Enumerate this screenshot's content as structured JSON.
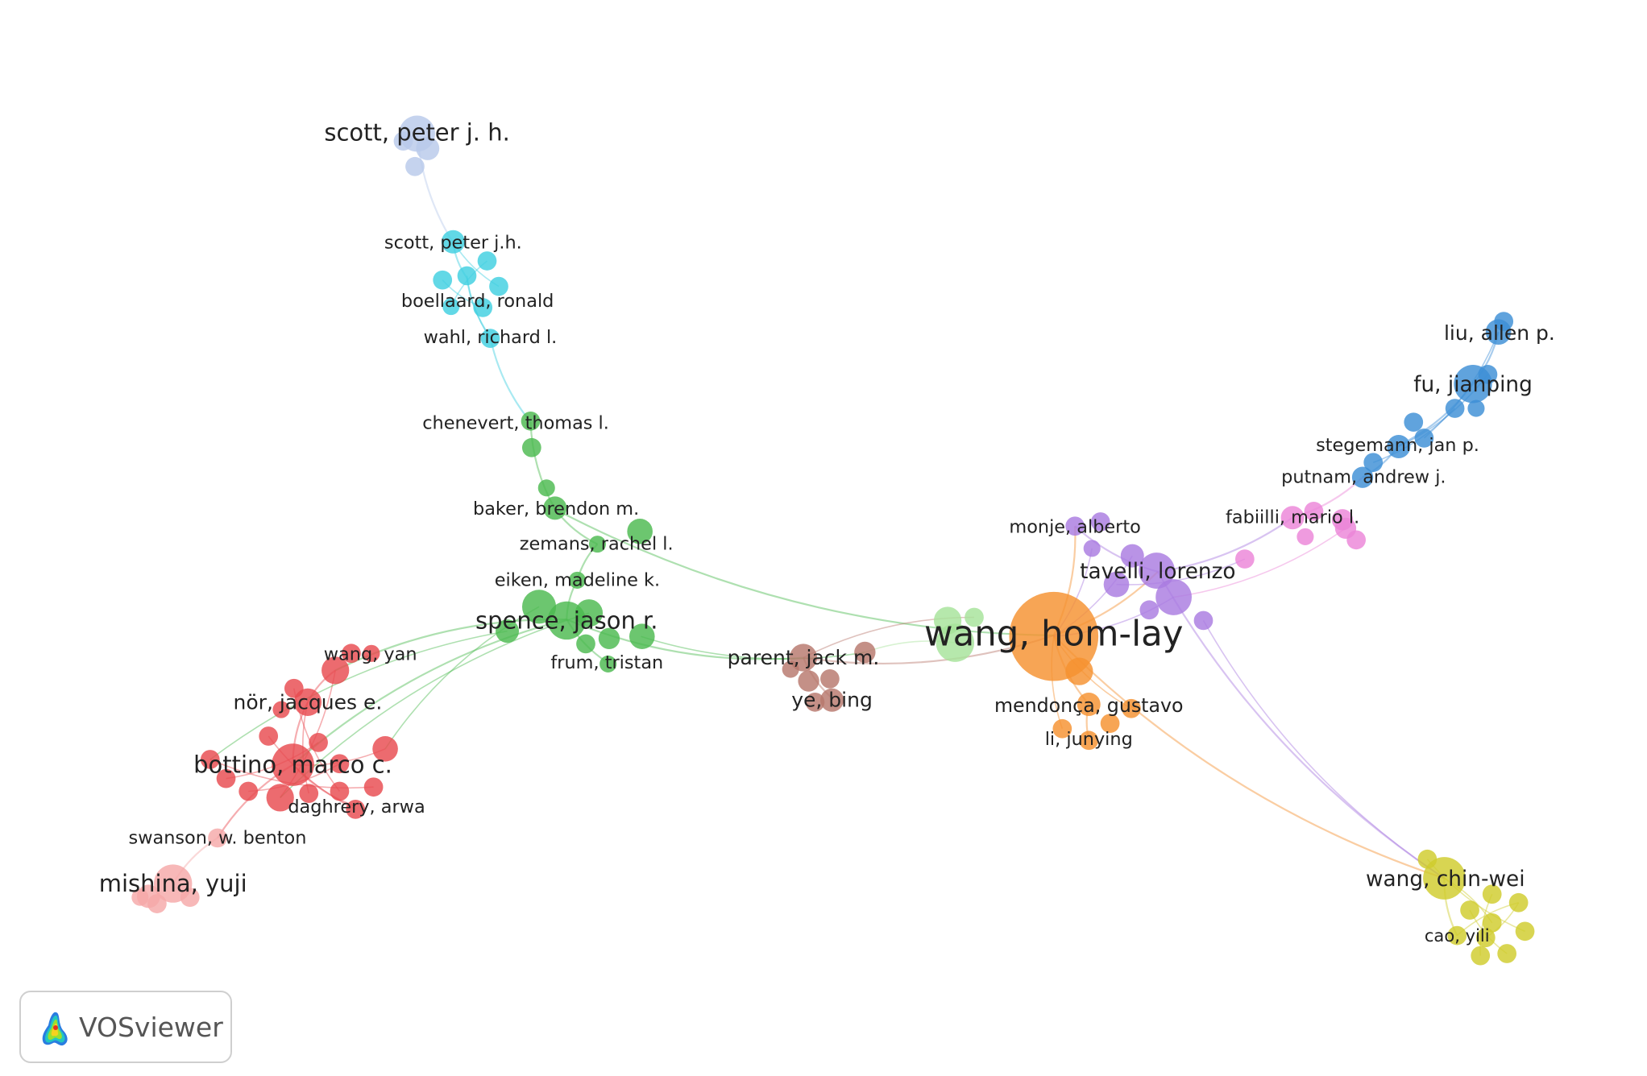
{
  "app": {
    "brand": "VOSviewer",
    "logo_icon": "vosviewer-heatmap-logo-icon"
  },
  "clusters": [
    {
      "id": "red",
      "color": "#e84a4f"
    },
    {
      "id": "green",
      "color": "#4cba4f"
    },
    {
      "id": "blue",
      "color": "#3d8fd6"
    },
    {
      "id": "yellow",
      "color": "#cfcc2c"
    },
    {
      "id": "purple",
      "color": "#a97be0"
    },
    {
      "id": "cyan",
      "color": "#3fcfe0"
    },
    {
      "id": "orange",
      "color": "#f59130"
    },
    {
      "id": "brown",
      "color": "#b7776c"
    },
    {
      "id": "pink",
      "color": "#eb85d8"
    },
    {
      "id": "light-red",
      "color": "#f5a8a8"
    },
    {
      "id": "light-blue",
      "color": "#b8c9ea"
    },
    {
      "id": "light-green",
      "color": "#a6e39a"
    }
  ],
  "nodes": [
    {
      "id": "scott-peter-j-h",
      "label": "scott, peter j. h.",
      "cluster": "light-blue",
      "weight": 3
    },
    {
      "id": "scott-peter-jh",
      "label": "scott, peter j.h.",
      "cluster": "cyan",
      "weight": 1
    },
    {
      "id": "boellaard-ronald",
      "label": "boellaard, ronald",
      "cluster": "cyan",
      "weight": 1
    },
    {
      "id": "wahl-richard-l",
      "label": "wahl, richard l.",
      "cluster": "cyan",
      "weight": 1
    },
    {
      "id": "chenevert-thomas-l",
      "label": "chenevert, thomas l.",
      "cluster": "green",
      "weight": 1
    },
    {
      "id": "baker-brendon-m",
      "label": "baker, brendon m.",
      "cluster": "green",
      "weight": 1
    },
    {
      "id": "zemans-rachel-l",
      "label": "zemans, rachel l.",
      "cluster": "green",
      "weight": 1
    },
    {
      "id": "eiken-madeline-k",
      "label": "eiken, madeline k.",
      "cluster": "green",
      "weight": 1
    },
    {
      "id": "spence-jason-r",
      "label": "spence, jason r.",
      "cluster": "green",
      "weight": 3
    },
    {
      "id": "frum-tristan",
      "label": "frum, tristan",
      "cluster": "green",
      "weight": 1
    },
    {
      "id": "wang-yan",
      "label": "wang, yan",
      "cluster": "red",
      "weight": 1
    },
    {
      "id": "nor-jacques-e",
      "label": "nör, jacques e.",
      "cluster": "red",
      "weight": 2
    },
    {
      "id": "bottino-marco-c",
      "label": "bottino, marco c.",
      "cluster": "red",
      "weight": 3
    },
    {
      "id": "daghrery-arwa",
      "label": "daghrery, arwa",
      "cluster": "red",
      "weight": 1
    },
    {
      "id": "swanson-w-benton",
      "label": "swanson, w. benton",
      "cluster": "light-red",
      "weight": 1
    },
    {
      "id": "mishina-yuji",
      "label": "mishina, yuji",
      "cluster": "light-red",
      "weight": 3
    },
    {
      "id": "parent-jack-m",
      "label": "parent, jack m.",
      "cluster": "brown",
      "weight": 2
    },
    {
      "id": "ye-bing",
      "label": "ye, bing",
      "cluster": "brown",
      "weight": 2
    },
    {
      "id": "wang-hom-lay",
      "label": "wang, hom-lay",
      "cluster": "orange",
      "weight": 5
    },
    {
      "id": "mendonca-gustavo",
      "label": "mendonça, gustavo",
      "cluster": "orange",
      "weight": 2
    },
    {
      "id": "li-junying",
      "label": "li, junying",
      "cluster": "orange",
      "weight": 1
    },
    {
      "id": "monje-alberto",
      "label": "monje, alberto",
      "cluster": "purple",
      "weight": 2
    },
    {
      "id": "tavelli-lorenzo",
      "label": "tavelli, lorenzo",
      "cluster": "purple",
      "weight": 3
    },
    {
      "id": "fabiilli-mario-l",
      "label": "fabiilli, mario l.",
      "cluster": "pink",
      "weight": 2
    },
    {
      "id": "putnam-andrew-j",
      "label": "putnam, andrew j.",
      "cluster": "blue",
      "weight": 2
    },
    {
      "id": "stegemann-jan-p",
      "label": "stegemann, jan p.",
      "cluster": "blue",
      "weight": 2
    },
    {
      "id": "fu-jianping",
      "label": "fu, jianping",
      "cluster": "blue",
      "weight": 3
    },
    {
      "id": "liu-allen-p",
      "label": "liu, allen p.",
      "cluster": "blue",
      "weight": 2
    },
    {
      "id": "wang-chin-wei",
      "label": "wang, chin-wei",
      "cluster": "yellow",
      "weight": 3
    },
    {
      "id": "cao-yili",
      "label": "cao, yili",
      "cluster": "yellow",
      "weight": 1
    }
  ],
  "links": [
    [
      "scott-peter-j-h",
      "scott-peter-jh"
    ],
    [
      "scott-peter-jh",
      "boellaard-ronald"
    ],
    [
      "boellaard-ronald",
      "wahl-richard-l"
    ],
    [
      "wahl-richard-l",
      "chenevert-thomas-l"
    ],
    [
      "chenevert-thomas-l",
      "baker-brendon-m"
    ],
    [
      "baker-brendon-m",
      "zemans-rachel-l"
    ],
    [
      "zemans-rachel-l",
      "eiken-madeline-k"
    ],
    [
      "eiken-madeline-k",
      "spence-jason-r"
    ],
    [
      "spence-jason-r",
      "frum-tristan"
    ],
    [
      "spence-jason-r",
      "wang-yan"
    ],
    [
      "spence-jason-r",
      "bottino-marco-c"
    ],
    [
      "spence-jason-r",
      "parent-jack-m"
    ],
    [
      "baker-brendon-m",
      "wang-hom-lay"
    ],
    [
      "wang-yan",
      "nor-jacques-e"
    ],
    [
      "nor-jacques-e",
      "bottino-marco-c"
    ],
    [
      "bottino-marco-c",
      "daghrery-arwa"
    ],
    [
      "bottino-marco-c",
      "swanson-w-benton"
    ],
    [
      "swanson-w-benton",
      "mishina-yuji"
    ],
    [
      "parent-jack-m",
      "ye-bing"
    ],
    [
      "parent-jack-m",
      "wang-hom-lay"
    ],
    [
      "wang-hom-lay",
      "mendonca-gustavo"
    ],
    [
      "mendonca-gustavo",
      "li-junying"
    ],
    [
      "wang-hom-lay",
      "monje-alberto"
    ],
    [
      "wang-hom-lay",
      "tavelli-lorenzo"
    ],
    [
      "monje-alberto",
      "tavelli-lorenzo"
    ],
    [
      "tavelli-lorenzo",
      "fabiilli-mario-l"
    ],
    [
      "fabiilli-mario-l",
      "putnam-andrew-j"
    ],
    [
      "putnam-andrew-j",
      "stegemann-jan-p"
    ],
    [
      "stegemann-jan-p",
      "fu-jianping"
    ],
    [
      "fu-jianping",
      "liu-allen-p"
    ],
    [
      "wang-hom-lay",
      "wang-chin-wei"
    ],
    [
      "tavelli-lorenzo",
      "wang-chin-wei"
    ],
    [
      "wang-chin-wei",
      "cao-yili"
    ]
  ]
}
